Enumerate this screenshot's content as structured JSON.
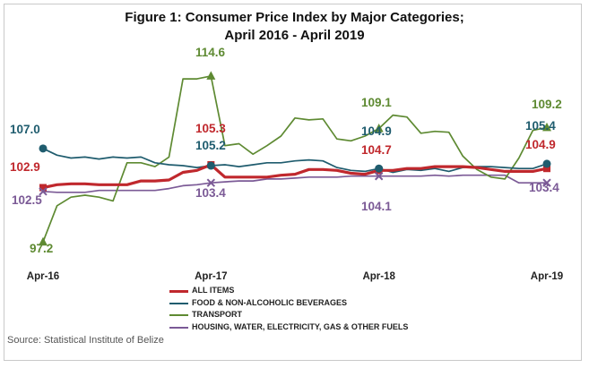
{
  "chart_data": {
    "type": "line",
    "title": "Figure 1: Consumer Price Index by Major Categories;",
    "subtitle": "April 2016 - April 2019",
    "x": [
      "Apr-16",
      "May-16",
      "Jun-16",
      "Jul-16",
      "Aug-16",
      "Sep-16",
      "Oct-16",
      "Nov-16",
      "Dec-16",
      "Jan-17",
      "Feb-17",
      "Mar-17",
      "Apr-17",
      "May-17",
      "Jun-17",
      "Jul-17",
      "Aug-17",
      "Sep-17",
      "Oct-17",
      "Nov-17",
      "Dec-17",
      "Jan-18",
      "Feb-18",
      "Mar-18",
      "Apr-18",
      "May-18",
      "Jun-18",
      "Jul-18",
      "Aug-18",
      "Sep-18",
      "Oct-18",
      "Nov-18",
      "Dec-18",
      "Jan-19",
      "Feb-19",
      "Mar-19",
      "Apr-19"
    ],
    "x_tick_labels": [
      "Apr-16",
      "Apr-17",
      "Apr-18",
      "Apr-19"
    ],
    "ylim": [
      96,
      116
    ],
    "grid": false,
    "legend_position": "bottom",
    "series": [
      {
        "name": "ALL ITEMS",
        "color": "#c0282d",
        "values": [
          102.9,
          103.2,
          103.3,
          103.3,
          103.2,
          103.2,
          103.2,
          103.6,
          103.6,
          103.7,
          104.5,
          104.7,
          105.3,
          104.0,
          104.0,
          104.0,
          104.0,
          104.2,
          104.3,
          104.8,
          104.8,
          104.7,
          104.4,
          104.3,
          104.7,
          104.7,
          104.9,
          104.9,
          105.1,
          105.1,
          105.1,
          105.0,
          104.8,
          104.6,
          104.6,
          104.6,
          104.9
        ]
      },
      {
        "name": "FOOD & NON-ALCOHOLIC BEVERAGES",
        "color": "#1f5c6e",
        "values": [
          107.0,
          106.3,
          106.0,
          106.1,
          105.9,
          106.1,
          106.0,
          106.1,
          105.5,
          105.3,
          105.2,
          105.0,
          105.2,
          105.3,
          105.1,
          105.3,
          105.5,
          105.5,
          105.7,
          105.8,
          105.7,
          105.0,
          104.7,
          104.6,
          104.9,
          104.5,
          104.8,
          104.7,
          104.9,
          104.6,
          105.0,
          105.1,
          105.1,
          105.0,
          104.9,
          104.9,
          105.4
        ]
      },
      {
        "name": "TRANSPORT",
        "color": "#5e8a32",
        "values": [
          97.2,
          101.0,
          101.9,
          102.1,
          101.9,
          101.5,
          105.5,
          105.5,
          105.1,
          106.1,
          114.3,
          114.3,
          114.6,
          107.3,
          107.5,
          106.4,
          107.3,
          108.3,
          110.2,
          110.0,
          110.1,
          108.0,
          107.8,
          108.3,
          109.1,
          110.5,
          110.3,
          108.6,
          108.8,
          108.7,
          106.2,
          104.8,
          104.0,
          103.8,
          106.0,
          108.9,
          109.2
        ]
      },
      {
        "name": "HOUSING, WATER, ELECTRICITY, GAS & OTHER FUELS",
        "color": "#7b5a96",
        "values": [
          102.5,
          102.4,
          102.4,
          102.4,
          102.6,
          102.6,
          102.6,
          102.6,
          102.6,
          102.8,
          103.1,
          103.2,
          103.4,
          103.5,
          103.6,
          103.6,
          103.8,
          103.8,
          103.9,
          104.0,
          104.0,
          104.0,
          104.1,
          104.1,
          104.1,
          104.1,
          104.1,
          104.1,
          104.2,
          104.1,
          104.2,
          104.2,
          104.2,
          104.2,
          103.4,
          103.4,
          103.4
        ]
      }
    ],
    "annotations": [
      {
        "series": 0,
        "index": 0,
        "label": "102.9"
      },
      {
        "series": 0,
        "index": 12,
        "label": "105.3"
      },
      {
        "series": 0,
        "index": 24,
        "label": "104.7"
      },
      {
        "series": 0,
        "index": 36,
        "label": "104.9"
      },
      {
        "series": 1,
        "index": 0,
        "label": "107.0"
      },
      {
        "series": 1,
        "index": 12,
        "label": "105.2"
      },
      {
        "series": 1,
        "index": 24,
        "label": "104.9"
      },
      {
        "series": 1,
        "index": 36,
        "label": "105.4"
      },
      {
        "series": 2,
        "index": 0,
        "label": "97.2"
      },
      {
        "series": 2,
        "index": 12,
        "label": "114.6"
      },
      {
        "series": 2,
        "index": 24,
        "label": "109.1"
      },
      {
        "series": 2,
        "index": 36,
        "label": "109.2"
      },
      {
        "series": 3,
        "index": 0,
        "label": "102.5"
      },
      {
        "series": 3,
        "index": 12,
        "label": "103.4"
      },
      {
        "series": 3,
        "index": 24,
        "label": "104.1"
      },
      {
        "series": 3,
        "index": 36,
        "label": "103.4"
      }
    ]
  },
  "source_note": "Source: Statistical Institute of Belize"
}
